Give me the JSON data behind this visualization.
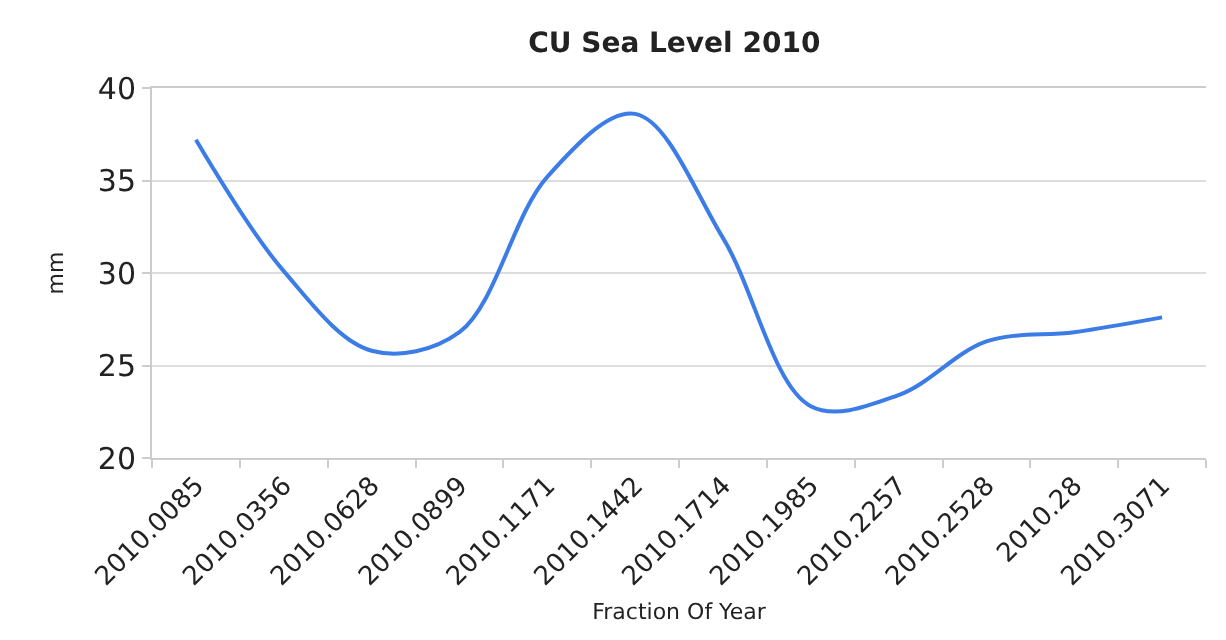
{
  "chart_data": {
    "type": "line",
    "title": "CU Sea Level 2010",
    "xlabel": "Fraction Of Year",
    "ylabel": "mm",
    "categories": [
      "2010.0085",
      "2010.0356",
      "2010.0628",
      "2010.0899",
      "2010.1171",
      "2010.1442",
      "2010.1714",
      "2010.1985",
      "2010.2257",
      "2010.2528",
      "2010.28",
      "2010.3071"
    ],
    "series": [
      {
        "color": "#3c7ce6",
        "values": [
          37.2,
          30.1,
          25.8,
          26.8,
          35.2,
          38.6,
          31.9,
          22.8,
          23.4,
          26.3,
          26.8,
          27.6
        ]
      }
    ],
    "ylim": [
      20,
      40
    ],
    "yticks": [
      20,
      25,
      30,
      35,
      40
    ],
    "grid": "y",
    "marker": "none",
    "line_style": "solid"
  }
}
